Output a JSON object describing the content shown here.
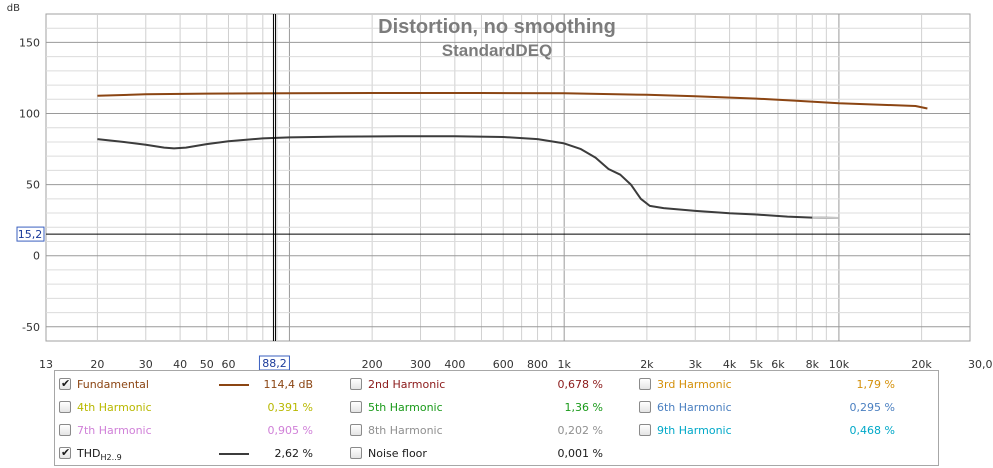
{
  "chart_data": {
    "type": "line",
    "title": "Distortion, no smoothing",
    "subtitle": "StandardDEQ",
    "x_unit": "kHz",
    "x_scale": "log",
    "xlim": [
      13,
      30000
    ],
    "ylim": [
      -60,
      170
    ],
    "y_unit": "dB",
    "grid": true,
    "x_ticks": [
      {
        "v": 13,
        "label": "13"
      },
      {
        "v": 20,
        "label": "20"
      },
      {
        "v": 30,
        "label": "30"
      },
      {
        "v": 40,
        "label": "40"
      },
      {
        "v": 50,
        "label": "50"
      },
      {
        "v": 60,
        "label": "60"
      },
      {
        "v": 200,
        "label": "200"
      },
      {
        "v": 300,
        "label": "300"
      },
      {
        "v": 400,
        "label": "400"
      },
      {
        "v": 600,
        "label": "600"
      },
      {
        "v": 800,
        "label": "800"
      },
      {
        "v": 1000,
        "label": "1k"
      },
      {
        "v": 2000,
        "label": "2k"
      },
      {
        "v": 3000,
        "label": "3k"
      },
      {
        "v": 4000,
        "label": "4k"
      },
      {
        "v": 5000,
        "label": "5k"
      },
      {
        "v": 6000,
        "label": "6k"
      },
      {
        "v": 8000,
        "label": "8k"
      },
      {
        "v": 10000,
        "label": "10k"
      },
      {
        "v": 20000,
        "label": "20k"
      },
      {
        "v": 30000,
        "label": "30,0kHz"
      }
    ],
    "y_ticks": [
      {
        "v": 150,
        "label": "150"
      },
      {
        "v": 100,
        "label": "100"
      },
      {
        "v": 50,
        "label": "50"
      },
      {
        "v": 0,
        "label": "0"
      },
      {
        "v": -50,
        "label": "-50"
      }
    ],
    "cursor": {
      "x": 88.2,
      "x_label": "88,2",
      "y": 15.2,
      "y_label": "15,2"
    },
    "series": [
      {
        "name": "Fundamental",
        "color": "#8b4513",
        "points": [
          [
            20,
            112.5
          ],
          [
            30,
            113.5
          ],
          [
            50,
            114
          ],
          [
            100,
            114.3
          ],
          [
            200,
            114.4
          ],
          [
            500,
            114.4
          ],
          [
            1000,
            114.2
          ],
          [
            2000,
            113.2
          ],
          [
            3000,
            112.2
          ],
          [
            5000,
            110.5
          ],
          [
            7000,
            109
          ],
          [
            10000,
            107.2
          ],
          [
            15000,
            106
          ],
          [
            19000,
            105.3
          ],
          [
            21000,
            103.5
          ]
        ]
      },
      {
        "name": "THD H2..9",
        "color": "#3c3c3c",
        "points": [
          [
            20,
            82
          ],
          [
            25,
            80
          ],
          [
            30,
            78
          ],
          [
            35,
            76
          ],
          [
            38,
            75.5
          ],
          [
            42,
            76
          ],
          [
            50,
            78.5
          ],
          [
            60,
            80.5
          ],
          [
            80,
            82.5
          ],
          [
            100,
            83.2
          ],
          [
            150,
            83.8
          ],
          [
            250,
            84
          ],
          [
            400,
            84
          ],
          [
            600,
            83.5
          ],
          [
            800,
            82
          ],
          [
            1000,
            79
          ],
          [
            1150,
            75
          ],
          [
            1300,
            69
          ],
          [
            1450,
            61
          ],
          [
            1600,
            57
          ],
          [
            1750,
            50
          ],
          [
            1900,
            40
          ],
          [
            2050,
            35
          ],
          [
            2300,
            33.5
          ],
          [
            3000,
            31.5
          ],
          [
            4000,
            29.8
          ],
          [
            5000,
            29
          ],
          [
            6500,
            27.5
          ],
          [
            8000,
            26.8
          ],
          [
            10000,
            26.5
          ]
        ]
      }
    ]
  },
  "legend": {
    "items": [
      {
        "label": "Fundamental",
        "checked": true,
        "color": "#8b4513",
        "swatch": "#8b4513",
        "value": "114,4 dB"
      },
      {
        "label": "2nd Harmonic",
        "checked": false,
        "color": "#8b1a1a",
        "value": "0,678 %"
      },
      {
        "label": "3rd Harmonic",
        "checked": false,
        "color": "#d4900a",
        "value": "1,79 %"
      },
      {
        "label": "4th Harmonic",
        "checked": false,
        "color": "#b8b800",
        "value": "0,391 %"
      },
      {
        "label": "5th Harmonic",
        "checked": false,
        "color": "#1a9a1a",
        "value": "1,36 %"
      },
      {
        "label": "6th Harmonic",
        "checked": false,
        "color": "#4a7fc0",
        "value": "0,295 %"
      },
      {
        "label": "7th Harmonic",
        "checked": false,
        "color": "#d080d8",
        "value": "0,905 %"
      },
      {
        "label": "8th Harmonic",
        "checked": false,
        "color": "#909090",
        "value": "0,202 %"
      },
      {
        "label": "9th Harmonic",
        "checked": false,
        "color": "#00a8c8",
        "value": "0,468 %"
      },
      {
        "label": "THD",
        "sub": "H2..9",
        "checked": true,
        "color": "#1a1a1a",
        "swatch": "#3c3c3c",
        "value": "2,62 %"
      },
      {
        "label": "Noise floor",
        "checked": false,
        "color": "#1a1a1a",
        "value": "0,001 %"
      }
    ]
  }
}
